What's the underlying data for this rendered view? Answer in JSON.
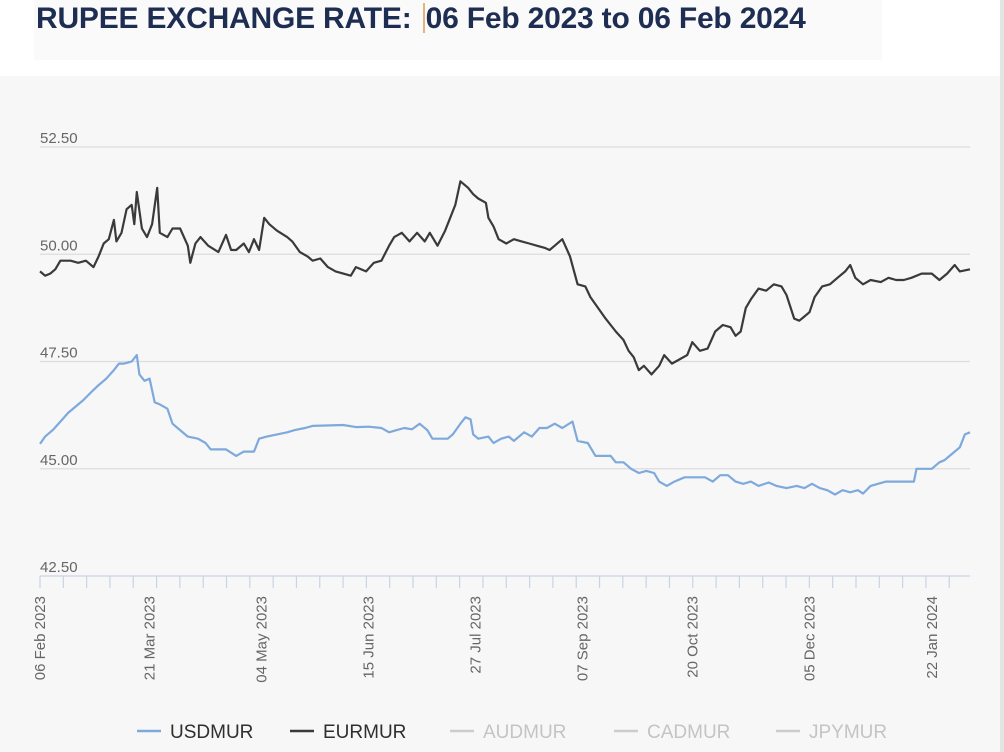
{
  "header": {
    "title_prefix": "RUPEE EXCHANGE RATE: ",
    "title_range": "06 Feb 2023 to 06 Feb 2024"
  },
  "chart_data": {
    "type": "line",
    "title": "RUPEE EXCHANGE RATE: 06 Feb 2023 to 06 Feb 2024",
    "xlabel": "",
    "ylabel": "",
    "ylim": [
      42.5,
      52.5
    ],
    "y_ticks": [
      "42.50",
      "45.00",
      "47.50",
      "50.00",
      "52.50"
    ],
    "grid": true,
    "legend_position": "bottom",
    "x_range": [
      "2023-02-06",
      "2024-02-06"
    ],
    "x_tick_labels": [
      {
        "date": "2023-02-06",
        "label": "06 Feb 2023"
      },
      {
        "date": "2023-03-21",
        "label": "21 Mar 2023"
      },
      {
        "date": "2023-05-04",
        "label": "04 May 2023"
      },
      {
        "date": "2023-06-15",
        "label": "15 Jun 2023"
      },
      {
        "date": "2023-07-27",
        "label": "27 Jul 2023"
      },
      {
        "date": "2023-09-07",
        "label": "07 Sep 2023"
      },
      {
        "date": "2023-10-20",
        "label": "20 Oct 2023"
      },
      {
        "date": "2023-12-05",
        "label": "05 Dec 2023"
      },
      {
        "date": "2024-01-22",
        "label": "22 Jan 2024"
      }
    ],
    "series": [
      {
        "name": "USDMUR",
        "color": "#7ea9dc",
        "visible": true,
        "points": [
          [
            "2023-02-06",
            45.58
          ],
          [
            "2023-02-08",
            45.75
          ],
          [
            "2023-02-11",
            45.9
          ],
          [
            "2023-02-14",
            46.1
          ],
          [
            "2023-02-17",
            46.3
          ],
          [
            "2023-02-20",
            46.45
          ],
          [
            "2023-02-23",
            46.6
          ],
          [
            "2023-02-26",
            46.78
          ],
          [
            "2023-03-01",
            46.95
          ],
          [
            "2023-03-04",
            47.1
          ],
          [
            "2023-03-07",
            47.3
          ],
          [
            "2023-03-09",
            47.45
          ],
          [
            "2023-03-11",
            47.45
          ],
          [
            "2023-03-14",
            47.5
          ],
          [
            "2023-03-16",
            47.65
          ],
          [
            "2023-03-17",
            47.2
          ],
          [
            "2023-03-19",
            47.05
          ],
          [
            "2023-03-21",
            47.1
          ],
          [
            "2023-03-23",
            46.55
          ],
          [
            "2023-03-25",
            46.5
          ],
          [
            "2023-03-28",
            46.4
          ],
          [
            "2023-03-30",
            46.05
          ],
          [
            "2023-04-02",
            45.9
          ],
          [
            "2023-04-05",
            45.75
          ],
          [
            "2023-04-09",
            45.7
          ],
          [
            "2023-04-12",
            45.6
          ],
          [
            "2023-04-14",
            45.45
          ],
          [
            "2023-04-20",
            45.45
          ],
          [
            "2023-04-24",
            45.3
          ],
          [
            "2023-04-27",
            45.4
          ],
          [
            "2023-05-01",
            45.4
          ],
          [
            "2023-05-03",
            45.7
          ],
          [
            "2023-05-06",
            45.75
          ],
          [
            "2023-05-10",
            45.8
          ],
          [
            "2023-05-14",
            45.85
          ],
          [
            "2023-05-17",
            45.9
          ],
          [
            "2023-05-21",
            45.95
          ],
          [
            "2023-05-24",
            46.0
          ],
          [
            "2023-06-05",
            46.02
          ],
          [
            "2023-06-10",
            45.97
          ],
          [
            "2023-06-15",
            45.98
          ],
          [
            "2023-06-20",
            45.95
          ],
          [
            "2023-06-23",
            45.85
          ],
          [
            "2023-06-26",
            45.9
          ],
          [
            "2023-06-29",
            45.95
          ],
          [
            "2023-07-02",
            45.92
          ],
          [
            "2023-07-05",
            46.05
          ],
          [
            "2023-07-08",
            45.9
          ],
          [
            "2023-07-10",
            45.7
          ],
          [
            "2023-07-16",
            45.7
          ],
          [
            "2023-07-18",
            45.8
          ],
          [
            "2023-07-21",
            46.05
          ],
          [
            "2023-07-23",
            46.2
          ],
          [
            "2023-07-25",
            46.15
          ],
          [
            "2023-07-26",
            45.8
          ],
          [
            "2023-07-28",
            45.7
          ],
          [
            "2023-08-01",
            45.75
          ],
          [
            "2023-08-03",
            45.6
          ],
          [
            "2023-08-06",
            45.7
          ],
          [
            "2023-08-09",
            45.75
          ],
          [
            "2023-08-11",
            45.65
          ],
          [
            "2023-08-15",
            45.85
          ],
          [
            "2023-08-18",
            45.75
          ],
          [
            "2023-08-21",
            45.95
          ],
          [
            "2023-08-24",
            45.95
          ],
          [
            "2023-08-27",
            46.05
          ],
          [
            "2023-08-30",
            45.95
          ],
          [
            "2023-09-03",
            46.1
          ],
          [
            "2023-09-05",
            45.65
          ],
          [
            "2023-09-09",
            45.6
          ],
          [
            "2023-09-12",
            45.3
          ],
          [
            "2023-09-18",
            45.3
          ],
          [
            "2023-09-20",
            45.15
          ],
          [
            "2023-09-23",
            45.15
          ],
          [
            "2023-09-26",
            45.0
          ],
          [
            "2023-09-29",
            44.9
          ],
          [
            "2023-10-02",
            44.95
          ],
          [
            "2023-10-05",
            44.9
          ],
          [
            "2023-10-07",
            44.7
          ],
          [
            "2023-10-10",
            44.6
          ],
          [
            "2023-10-13",
            44.7
          ],
          [
            "2023-10-17",
            44.8
          ],
          [
            "2023-10-25",
            44.8
          ],
          [
            "2023-10-28",
            44.7
          ],
          [
            "2023-10-31",
            44.85
          ],
          [
            "2023-11-03",
            44.85
          ],
          [
            "2023-11-06",
            44.7
          ],
          [
            "2023-11-09",
            44.65
          ],
          [
            "2023-11-12",
            44.7
          ],
          [
            "2023-11-15",
            44.6
          ],
          [
            "2023-11-19",
            44.68
          ],
          [
            "2023-11-22",
            44.6
          ],
          [
            "2023-11-26",
            44.55
          ],
          [
            "2023-11-30",
            44.6
          ],
          [
            "2023-12-03",
            44.55
          ],
          [
            "2023-12-06",
            44.65
          ],
          [
            "2023-12-09",
            44.55
          ],
          [
            "2023-12-12",
            44.5
          ],
          [
            "2023-12-15",
            44.4
          ],
          [
            "2023-12-18",
            44.5
          ],
          [
            "2023-12-21",
            44.45
          ],
          [
            "2023-12-24",
            44.5
          ],
          [
            "2023-12-26",
            44.42
          ],
          [
            "2023-12-29",
            44.6
          ],
          [
            "2024-01-04",
            44.7
          ],
          [
            "2024-01-10",
            44.7
          ],
          [
            "2024-01-15",
            44.7
          ],
          [
            "2024-01-16",
            45.0
          ],
          [
            "2024-01-22",
            45.0
          ],
          [
            "2024-01-25",
            45.15
          ],
          [
            "2024-01-27",
            45.2
          ],
          [
            "2024-01-29",
            45.3
          ],
          [
            "2024-01-31",
            45.4
          ],
          [
            "2024-02-02",
            45.5
          ],
          [
            "2024-02-04",
            45.8
          ],
          [
            "2024-02-06",
            45.85
          ]
        ]
      },
      {
        "name": "EURMUR",
        "color": "#3a3a3a",
        "visible": true,
        "points": [
          [
            "2023-02-06",
            49.6
          ],
          [
            "2023-02-08",
            49.5
          ],
          [
            "2023-02-10",
            49.55
          ],
          [
            "2023-02-12",
            49.65
          ],
          [
            "2023-02-14",
            49.85
          ],
          [
            "2023-02-18",
            49.85
          ],
          [
            "2023-02-21",
            49.8
          ],
          [
            "2023-02-24",
            49.85
          ],
          [
            "2023-02-27",
            49.7
          ],
          [
            "2023-03-01",
            49.95
          ],
          [
            "2023-03-03",
            50.25
          ],
          [
            "2023-03-05",
            50.35
          ],
          [
            "2023-03-07",
            50.8
          ],
          [
            "2023-03-08",
            50.3
          ],
          [
            "2023-03-10",
            50.5
          ],
          [
            "2023-03-12",
            51.05
          ],
          [
            "2023-03-14",
            51.15
          ],
          [
            "2023-03-15",
            50.7
          ],
          [
            "2023-03-16",
            51.45
          ],
          [
            "2023-03-18",
            50.6
          ],
          [
            "2023-03-20",
            50.4
          ],
          [
            "2023-03-22",
            50.7
          ],
          [
            "2023-03-24",
            51.55
          ],
          [
            "2023-03-25",
            50.5
          ],
          [
            "2023-03-28",
            50.4
          ],
          [
            "2023-03-30",
            50.6
          ],
          [
            "2023-04-02",
            50.6
          ],
          [
            "2023-04-05",
            50.2
          ],
          [
            "2023-04-06",
            49.8
          ],
          [
            "2023-04-08",
            50.25
          ],
          [
            "2023-04-10",
            50.4
          ],
          [
            "2023-04-13",
            50.2
          ],
          [
            "2023-04-17",
            50.05
          ],
          [
            "2023-04-20",
            50.45
          ],
          [
            "2023-04-22",
            50.1
          ],
          [
            "2023-04-24",
            50.1
          ],
          [
            "2023-04-27",
            50.25
          ],
          [
            "2023-04-29",
            50.05
          ],
          [
            "2023-05-01",
            50.35
          ],
          [
            "2023-05-03",
            50.1
          ],
          [
            "2023-05-05",
            50.85
          ],
          [
            "2023-05-07",
            50.7
          ],
          [
            "2023-05-10",
            50.55
          ],
          [
            "2023-05-14",
            50.4
          ],
          [
            "2023-05-16",
            50.3
          ],
          [
            "2023-05-19",
            50.05
          ],
          [
            "2023-05-22",
            49.95
          ],
          [
            "2023-05-24",
            49.85
          ],
          [
            "2023-05-27",
            49.9
          ],
          [
            "2023-05-30",
            49.7
          ],
          [
            "2023-06-02",
            49.6
          ],
          [
            "2023-06-05",
            49.55
          ],
          [
            "2023-06-08",
            49.5
          ],
          [
            "2023-06-10",
            49.7
          ],
          [
            "2023-06-14",
            49.6
          ],
          [
            "2023-06-17",
            49.8
          ],
          [
            "2023-06-20",
            49.85
          ],
          [
            "2023-06-23",
            50.2
          ],
          [
            "2023-06-25",
            50.4
          ],
          [
            "2023-06-28",
            50.5
          ],
          [
            "2023-07-01",
            50.3
          ],
          [
            "2023-07-04",
            50.5
          ],
          [
            "2023-07-07",
            50.3
          ],
          [
            "2023-07-09",
            50.5
          ],
          [
            "2023-07-12",
            50.2
          ],
          [
            "2023-07-15",
            50.55
          ],
          [
            "2023-07-17",
            50.85
          ],
          [
            "2023-07-19",
            51.15
          ],
          [
            "2023-07-21",
            51.7
          ],
          [
            "2023-07-24",
            51.55
          ],
          [
            "2023-07-26",
            51.4
          ],
          [
            "2023-07-28",
            51.3
          ],
          [
            "2023-07-31",
            51.2
          ],
          [
            "2023-08-01",
            50.85
          ],
          [
            "2023-08-03",
            50.65
          ],
          [
            "2023-08-05",
            50.35
          ],
          [
            "2023-08-08",
            50.25
          ],
          [
            "2023-08-11",
            50.35
          ],
          [
            "2023-08-14",
            50.3
          ],
          [
            "2023-08-17",
            50.25
          ],
          [
            "2023-08-20",
            50.2
          ],
          [
            "2023-08-23",
            50.15
          ],
          [
            "2023-08-25",
            50.1
          ],
          [
            "2023-08-27",
            50.2
          ],
          [
            "2023-08-30",
            50.35
          ],
          [
            "2023-09-02",
            49.95
          ],
          [
            "2023-09-05",
            49.3
          ],
          [
            "2023-09-08",
            49.25
          ],
          [
            "2023-09-10",
            49.0
          ],
          [
            "2023-09-13",
            48.75
          ],
          [
            "2023-09-16",
            48.5
          ],
          [
            "2023-09-20",
            48.2
          ],
          [
            "2023-09-23",
            48.0
          ],
          [
            "2023-09-25",
            47.75
          ],
          [
            "2023-09-27",
            47.6
          ],
          [
            "2023-09-29",
            47.3
          ],
          [
            "2023-10-01",
            47.4
          ],
          [
            "2023-10-04",
            47.2
          ],
          [
            "2023-10-07",
            47.4
          ],
          [
            "2023-10-09",
            47.65
          ],
          [
            "2023-10-12",
            47.45
          ],
          [
            "2023-10-15",
            47.55
          ],
          [
            "2023-10-18",
            47.65
          ],
          [
            "2023-10-20",
            47.95
          ],
          [
            "2023-10-23",
            47.75
          ],
          [
            "2023-10-26",
            47.8
          ],
          [
            "2023-10-29",
            48.2
          ],
          [
            "2023-11-01",
            48.35
          ],
          [
            "2023-11-04",
            48.3
          ],
          [
            "2023-11-06",
            48.1
          ],
          [
            "2023-11-08",
            48.2
          ],
          [
            "2023-11-10",
            48.75
          ],
          [
            "2023-11-12",
            48.95
          ],
          [
            "2023-11-15",
            49.2
          ],
          [
            "2023-11-18",
            49.15
          ],
          [
            "2023-11-21",
            49.3
          ],
          [
            "2023-11-24",
            49.25
          ],
          [
            "2023-11-26",
            49.05
          ],
          [
            "2023-11-29",
            48.5
          ],
          [
            "2023-12-01",
            48.45
          ],
          [
            "2023-12-03",
            48.55
          ],
          [
            "2023-12-05",
            48.65
          ],
          [
            "2023-12-07",
            49.0
          ],
          [
            "2023-12-10",
            49.25
          ],
          [
            "2023-12-13",
            49.3
          ],
          [
            "2023-12-16",
            49.45
          ],
          [
            "2023-12-19",
            49.6
          ],
          [
            "2023-12-21",
            49.75
          ],
          [
            "2023-12-23",
            49.45
          ],
          [
            "2023-12-26",
            49.3
          ],
          [
            "2023-12-29",
            49.4
          ],
          [
            "2024-01-02",
            49.35
          ],
          [
            "2024-01-05",
            49.45
          ],
          [
            "2024-01-08",
            49.4
          ],
          [
            "2024-01-11",
            49.4
          ],
          [
            "2024-01-14",
            49.45
          ],
          [
            "2024-01-18",
            49.55
          ],
          [
            "2024-01-22",
            49.55
          ],
          [
            "2024-01-25",
            49.4
          ],
          [
            "2024-01-28",
            49.55
          ],
          [
            "2024-01-31",
            49.75
          ],
          [
            "2024-02-02",
            49.6
          ],
          [
            "2024-02-06",
            49.65
          ]
        ]
      },
      {
        "name": "AUDMUR",
        "color": "#bdbdbd",
        "visible": false,
        "points": []
      },
      {
        "name": "CADMUR",
        "color": "#bdbdbd",
        "visible": false,
        "points": []
      },
      {
        "name": "JPYMUR",
        "color": "#bdbdbd",
        "visible": false,
        "points": []
      }
    ]
  }
}
